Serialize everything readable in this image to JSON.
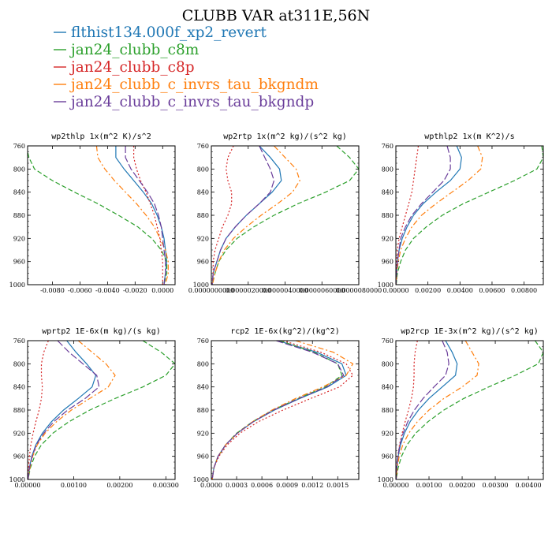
{
  "figure_title": "CLUBB VAR at311E,56N",
  "legend": [
    {
      "label": "flthist134.000f_xp2_revert",
      "color": "#1f77b4",
      "dash": "solid"
    },
    {
      "label": "jan24_clubb_c8m",
      "color": "#2ca02c",
      "dash": "dash"
    },
    {
      "label": "jan24_clubb_c8p",
      "color": "#d62728",
      "dash": "dot"
    },
    {
      "label": "jan24_clubb_c_invrs_tau_bkgndm",
      "color": "#ff7f0e",
      "dash": "dashdot"
    },
    {
      "label": "jan24_clubb_c_invrs_tau_bkgndp",
      "color": "#6a3d9a",
      "dash": "longdash"
    }
  ],
  "chart_data": [
    {
      "type": "line",
      "title": "wp2thlp  1x(m^2 K)/s^2",
      "ylim": [
        760,
        1000
      ],
      "yticks": [
        760,
        800,
        840,
        880,
        920,
        960,
        1000
      ],
      "xlim": [
        -0.0098,
        0.0009
      ],
      "xticks": [
        -0.008,
        -0.006,
        -0.004,
        -0.002,
        0.0
      ],
      "xtick_labels": [
        "-0.0080",
        "-0.0060",
        "-0.0040",
        "-0.0020",
        "0.0000"
      ],
      "y": [
        760,
        780,
        800,
        820,
        840,
        860,
        880,
        900,
        920,
        940,
        960,
        980,
        1000
      ],
      "series": [
        {
          "name": "flthist134.000f_xp2_revert",
          "values": [
            -0.0034,
            -0.0034,
            -0.0028,
            -0.0021,
            -0.0014,
            -0.0008,
            -0.0004,
            -0.0001,
            0.0001,
            0.0002,
            0.0003,
            0.0002,
            0.0001
          ]
        },
        {
          "name": "jan24_clubb_c8m",
          "values": [
            -0.0099,
            -0.0097,
            -0.0093,
            -0.008,
            -0.0064,
            -0.0047,
            -0.0032,
            -0.0018,
            -0.0008,
            -0.0001,
            0.0003,
            0.0003,
            0.0001
          ]
        },
        {
          "name": "jan24_clubb_c8p",
          "values": [
            -0.0021,
            -0.0021,
            -0.0019,
            -0.0016,
            -0.0012,
            -0.0009,
            -0.0006,
            -0.0004,
            -0.0002,
            -0.0001,
            0.0,
            0.0,
            0.0
          ]
        },
        {
          "name": "jan24_clubb_c_invrs_tau_bkgndm",
          "values": [
            -0.0048,
            -0.0047,
            -0.0042,
            -0.0035,
            -0.0027,
            -0.0019,
            -0.0012,
            -0.0006,
            -0.0002,
            0.0002,
            0.0004,
            0.0004,
            0.0002
          ]
        },
        {
          "name": "jan24_clubb_c_invrs_tau_bkgndp",
          "values": [
            -0.0027,
            -0.0027,
            -0.0023,
            -0.0017,
            -0.0011,
            -0.0006,
            -0.0003,
            -0.0001,
            0.0,
            0.0001,
            0.0002,
            0.0002,
            0.0001
          ]
        }
      ]
    },
    {
      "type": "line",
      "title": "wp2rtp  1x(m^2 kg)/(s^2 kg)",
      "ylim": [
        760,
        1000
      ],
      "yticks": [
        760,
        800,
        840,
        880,
        920,
        960,
        1000
      ],
      "xlim": [
        0,
        8e-06
      ],
      "xticks": [
        0,
        2e-06,
        4e-06,
        6e-06,
        8e-06
      ],
      "xtick_labels": [
        "0.0000000000",
        "0.0000020000",
        "0.0000040000",
        "0.0000060000",
        "0.0000080000"
      ],
      "y": [
        760,
        780,
        800,
        820,
        840,
        860,
        880,
        900,
        920,
        940,
        960,
        980,
        1000
      ],
      "series": [
        {
          "name": "flthist134.000f_xp2_revert",
          "values": [
            2.6e-06,
            3.2e-06,
            3.7e-06,
            3.8e-06,
            3.3e-06,
            2.6e-06,
            1.9e-06,
            1.3e-06,
            8e-07,
            5e-07,
            3e-07,
            1e-07,
            5e-08
          ]
        },
        {
          "name": "jan24_clubb_c8m",
          "values": [
            6.8e-06,
            7.5e-06,
            8e-06,
            7.5e-06,
            6.2e-06,
            4.7e-06,
            3.4e-06,
            2.3e-06,
            1.4e-06,
            8e-07,
            4e-07,
            2e-07,
            5e-08
          ]
        },
        {
          "name": "jan24_clubb_c8p",
          "values": [
            1.2e-06,
            9e-07,
            8e-07,
            9e-07,
            1.1e-06,
            1.1e-06,
            9e-07,
            6e-07,
            4e-07,
            2e-07,
            1e-07,
            1e-07,
            3e-08
          ]
        },
        {
          "name": "jan24_clubb_c_invrs_tau_bkgndm",
          "values": [
            3.4e-06,
            4e-06,
            4.6e-06,
            4.8e-06,
            4.4e-06,
            3.6e-06,
            2.7e-06,
            1.9e-06,
            1.2e-06,
            7e-07,
            4e-07,
            2e-07,
            5e-08
          ]
        },
        {
          "name": "jan24_clubb_c_invrs_tau_bkgndp",
          "values": [
            2.6e-06,
            2.9e-06,
            3.2e-06,
            3.4e-06,
            3.2e-06,
            2.6e-06,
            1.9e-06,
            1.3e-06,
            8e-07,
            5e-07,
            3e-07,
            1e-07,
            5e-08
          ]
        }
      ]
    },
    {
      "type": "line",
      "title": "wpthlp2  1x(m K^2)/s",
      "ylim": [
        760,
        1000
      ],
      "yticks": [
        760,
        800,
        840,
        880,
        920,
        960,
        1000
      ],
      "xlim": [
        0,
        0.0092
      ],
      "xticks": [
        0,
        0.002,
        0.004,
        0.006,
        0.008
      ],
      "xtick_labels": [
        "0.00000",
        "0.00200",
        "0.00400",
        "0.00600",
        "0.00800"
      ],
      "y": [
        760,
        780,
        800,
        820,
        840,
        860,
        880,
        900,
        920,
        940,
        960,
        980,
        1000
      ],
      "series": [
        {
          "name": "flthist134.000f_xp2_revert",
          "values": [
            0.0038,
            0.0041,
            0.004,
            0.0034,
            0.0025,
            0.0017,
            0.0011,
            0.0007,
            0.0004,
            0.0002,
            0.0001,
            5e-05,
            1e-05
          ]
        },
        {
          "name": "jan24_clubb_c8m",
          "values": [
            0.0091,
            0.0092,
            0.0088,
            0.0074,
            0.0058,
            0.0042,
            0.0029,
            0.0019,
            0.0011,
            0.0006,
            0.0003,
            0.0001,
            2e-05
          ]
        },
        {
          "name": "jan24_clubb_c8p",
          "values": [
            0.0014,
            0.0013,
            0.0012,
            0.0011,
            0.001,
            0.0008,
            0.0006,
            0.0004,
            0.0002,
            0.0001,
            5e-05,
            2e-05,
            1e-05
          ]
        },
        {
          "name": "jan24_clubb_c_invrs_tau_bkgndm",
          "values": [
            0.0051,
            0.0054,
            0.0053,
            0.0045,
            0.0035,
            0.0025,
            0.0016,
            0.001,
            0.0006,
            0.0003,
            0.00015,
            6e-05,
            1e-05
          ]
        },
        {
          "name": "jan24_clubb_c_invrs_tau_bkgndp",
          "values": [
            0.0032,
            0.0034,
            0.0034,
            0.003,
            0.0023,
            0.0016,
            0.001,
            0.0006,
            0.0003,
            0.0002,
            0.0001,
            4e-05,
            1e-05
          ]
        }
      ]
    },
    {
      "type": "line",
      "title": "wprtp2  1E-6x(m kg)/(s kg)",
      "ylim": [
        760,
        1000
      ],
      "yticks": [
        760,
        800,
        840,
        880,
        920,
        960,
        1000
      ],
      "xlim": [
        0,
        0.0032
      ],
      "xticks": [
        0,
        0.001,
        0.002,
        0.003
      ],
      "xtick_labels": [
        "0.00000",
        "0.00100",
        "0.00200",
        "0.00300"
      ],
      "y": [
        760,
        780,
        800,
        820,
        840,
        860,
        880,
        900,
        920,
        940,
        960,
        980,
        1000
      ],
      "series": [
        {
          "name": "flthist134.000f_xp2_revert",
          "values": [
            0.00085,
            0.00105,
            0.00128,
            0.00148,
            0.0014,
            0.0011,
            0.00078,
            0.00052,
            0.00032,
            0.00018,
            9e-05,
            4e-05,
            1e-05
          ]
        },
        {
          "name": "jan24_clubb_c8m",
          "values": [
            0.0025,
            0.0029,
            0.0032,
            0.003,
            0.0025,
            0.0019,
            0.00135,
            0.0009,
            0.00055,
            0.0003,
            0.00015,
            6e-05,
            1e-05
          ]
        },
        {
          "name": "jan24_clubb_c8p",
          "values": [
            0.00045,
            0.00035,
            0.0003,
            0.0003,
            0.00032,
            0.0003,
            0.00025,
            0.00018,
            0.00012,
            7e-05,
            4e-05,
            2e-05,
            1e-05
          ]
        },
        {
          "name": "jan24_clubb_c_invrs_tau_bkgndm",
          "values": [
            0.0011,
            0.0014,
            0.0017,
            0.0019,
            0.00175,
            0.00135,
            0.00095,
            0.00063,
            0.00038,
            0.00021,
            0.00011,
            5e-05,
            1e-05
          ]
        },
        {
          "name": "jan24_clubb_c_invrs_tau_bkgndp",
          "values": [
            0.00065,
            0.0009,
            0.0012,
            0.0015,
            0.00155,
            0.00125,
            0.00087,
            0.00057,
            0.00035,
            0.00019,
            0.0001,
            4e-05,
            1e-05
          ]
        }
      ]
    },
    {
      "type": "line",
      "title": "rcp2  1E-6x(kg^2)/(kg^2)",
      "ylim": [
        760,
        1000
      ],
      "yticks": [
        760,
        800,
        840,
        880,
        920,
        960,
        1000
      ],
      "xlim": [
        0,
        0.00175
      ],
      "xticks": [
        0,
        0.0003,
        0.0006,
        0.0009,
        0.0012,
        0.0015
      ],
      "xtick_labels": [
        "0.0000",
        "0.0003",
        "0.0006",
        "0.0009",
        "0.0012",
        "0.0015"
      ],
      "y": [
        760,
        780,
        800,
        820,
        840,
        860,
        880,
        900,
        920,
        940,
        960,
        980,
        1000
      ],
      "series": [
        {
          "name": "flthist134.000f_xp2_revert",
          "values": [
            0.00079,
            0.00125,
            0.00155,
            0.0016,
            0.00138,
            0.00105,
            0.00075,
            0.0005,
            0.00031,
            0.00017,
            8e-05,
            3e-05,
            1e-05
          ]
        },
        {
          "name": "jan24_clubb_c8m",
          "values": [
            0.00081,
            0.00122,
            0.0015,
            0.00155,
            0.00135,
            0.00103,
            0.00073,
            0.00049,
            0.0003,
            0.00017,
            8e-05,
            3e-05,
            1e-05
          ]
        },
        {
          "name": "jan24_clubb_c8p",
          "values": [
            0.00085,
            0.0013,
            0.0016,
            0.00168,
            0.00152,
            0.00118,
            0.00085,
            0.00056,
            0.00034,
            0.00019,
            9e-05,
            3e-05,
            1e-05
          ]
        },
        {
          "name": "jan24_clubb_c_invrs_tau_bkgndm",
          "values": [
            0.001,
            0.00145,
            0.00168,
            0.0016,
            0.00132,
            0.001,
            0.00072,
            0.00049,
            0.00031,
            0.00017,
            8e-05,
            3e-05,
            1e-05
          ]
        },
        {
          "name": "jan24_clubb_c_invrs_tau_bkgndp",
          "values": [
            0.00077,
            0.0012,
            0.0015,
            0.00157,
            0.00137,
            0.00104,
            0.00074,
            0.0005,
            0.00031,
            0.00017,
            8e-05,
            3e-05,
            1e-05
          ]
        }
      ]
    },
    {
      "type": "line",
      "title": "wp2rcp  1E-3x(m^2 kg)/(s^2 kg)",
      "ylim": [
        760,
        1000
      ],
      "yticks": [
        760,
        800,
        840,
        880,
        920,
        960,
        1000
      ],
      "xlim": [
        0,
        0.00445
      ],
      "xticks": [
        0,
        0.001,
        0.002,
        0.003,
        0.004
      ],
      "xtick_labels": [
        "0.00000",
        "0.00100",
        "0.00200",
        "0.00300",
        "0.00400"
      ],
      "y": [
        760,
        780,
        800,
        820,
        840,
        860,
        880,
        900,
        920,
        940,
        960,
        980,
        1000
      ],
      "series": [
        {
          "name": "flthist134.000f_xp2_revert",
          "values": [
            0.0015,
            0.0017,
            0.00185,
            0.0018,
            0.0014,
            0.001,
            0.00068,
            0.00043,
            0.00026,
            0.00014,
            7e-05,
            3e-05,
            1e-05
          ]
        },
        {
          "name": "jan24_clubb_c8m",
          "values": [
            0.0042,
            0.00445,
            0.0043,
            0.0036,
            0.0028,
            0.00205,
            0.00145,
            0.00097,
            0.0006,
            0.00034,
            0.00017,
            7e-05,
            1e-05
          ]
        },
        {
          "name": "jan24_clubb_c8p",
          "values": [
            0.00065,
            0.00058,
            0.00055,
            0.00055,
            0.00053,
            0.00047,
            0.00038,
            0.00028,
            0.00019,
            0.00011,
            6e-05,
            2e-05,
            1e-05
          ]
        },
        {
          "name": "jan24_clubb_c_invrs_tau_bkgndm",
          "values": [
            0.0021,
            0.0023,
            0.0025,
            0.00245,
            0.002,
            0.00145,
            0.001,
            0.00065,
            0.00039,
            0.00021,
            0.0001,
            4e-05,
            1e-05
          ]
        },
        {
          "name": "jan24_clubb_c_invrs_tau_bkgndp",
          "values": [
            0.0014,
            0.00155,
            0.0016,
            0.0015,
            0.00115,
            0.00082,
            0.00056,
            0.00036,
            0.00022,
            0.00012,
            6e-05,
            2e-05,
            1e-05
          ]
        }
      ]
    }
  ]
}
